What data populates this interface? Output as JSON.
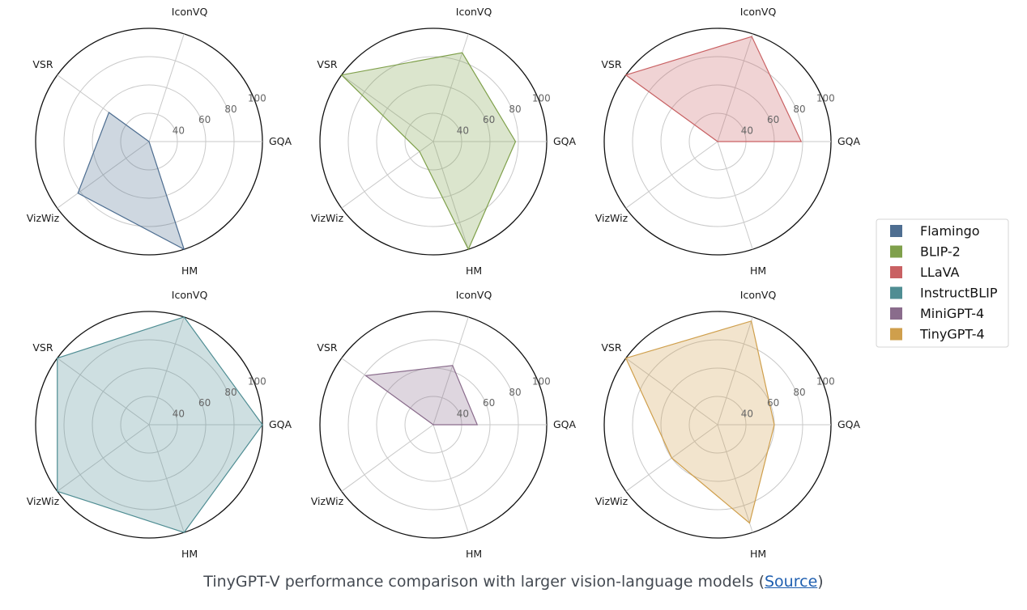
{
  "chart_data": {
    "type": "radar",
    "axes": [
      "GQA",
      "IconVQ",
      "VSR",
      "VizWiz",
      "HM"
    ],
    "radial_ticks": [
      40,
      60,
      80,
      100
    ],
    "radial_tick_labels": [
      "40",
      "60",
      "80",
      "100"
    ],
    "series": [
      {
        "name": "Flamingo",
        "color": "#4e6e91",
        "values": [
          0,
          0,
          55,
          82,
          100
        ]
      },
      {
        "name": "BLIP-2",
        "color": "#7fa04b",
        "values": [
          78,
          86,
          100,
          32,
          100
        ]
      },
      {
        "name": "LLaVA",
        "color": "#c96163",
        "values": [
          79,
          98,
          100,
          0,
          0
        ]
      },
      {
        "name": "InstructBLIP",
        "color": "#4f8d93",
        "values": [
          100,
          100,
          100,
          100,
          100
        ]
      },
      {
        "name": "MiniGPT-4",
        "color": "#8a6c8c",
        "values": [
          51,
          64,
          79,
          0,
          0
        ]
      },
      {
        "name": "TinyGPT-4",
        "color": "#cf9f4c",
        "values": [
          60,
          97,
          100,
          60,
          93
        ]
      }
    ]
  },
  "caption": {
    "text": "TinyGPT-V performance comparison with larger vision-language models (",
    "link_text": "Source",
    "suffix": ")"
  }
}
